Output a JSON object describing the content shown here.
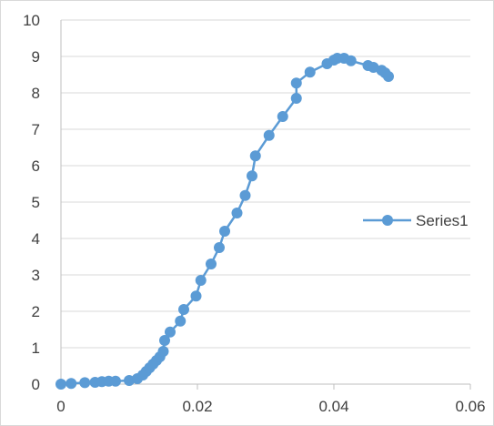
{
  "chart_data": {
    "type": "scatter",
    "title": "",
    "xlabel": "",
    "ylabel": "",
    "xlim": [
      0,
      0.06
    ],
    "ylim": [
      0,
      10
    ],
    "x_ticks": [
      "0",
      "0.02",
      "0.04",
      "0.06"
    ],
    "y_ticks": [
      "0",
      "1",
      "2",
      "3",
      "4",
      "5",
      "6",
      "7",
      "8",
      "9",
      "10"
    ],
    "grid": "horizontal",
    "legend_position": "right",
    "series": [
      {
        "name": "Series1",
        "color": "#5b9bd5",
        "points": [
          [
            0.0,
            0.0
          ],
          [
            0.0015,
            0.02
          ],
          [
            0.0035,
            0.04
          ],
          [
            0.005,
            0.05
          ],
          [
            0.006,
            0.07
          ],
          [
            0.007,
            0.08
          ],
          [
            0.008,
            0.08
          ],
          [
            0.01,
            0.1
          ],
          [
            0.0112,
            0.15
          ],
          [
            0.012,
            0.25
          ],
          [
            0.0125,
            0.35
          ],
          [
            0.013,
            0.45
          ],
          [
            0.0135,
            0.55
          ],
          [
            0.014,
            0.65
          ],
          [
            0.0145,
            0.75
          ],
          [
            0.015,
            0.9
          ],
          [
            0.0152,
            1.2
          ],
          [
            0.016,
            1.43
          ],
          [
            0.0175,
            1.73
          ],
          [
            0.018,
            2.05
          ],
          [
            0.0198,
            2.42
          ],
          [
            0.0205,
            2.85
          ],
          [
            0.022,
            3.3
          ],
          [
            0.0232,
            3.75
          ],
          [
            0.024,
            4.2
          ],
          [
            0.0258,
            4.7
          ],
          [
            0.027,
            5.18
          ],
          [
            0.028,
            5.72
          ],
          [
            0.0285,
            6.27
          ],
          [
            0.0305,
            6.83
          ],
          [
            0.0325,
            7.35
          ],
          [
            0.0345,
            7.85
          ],
          [
            0.0345,
            8.27
          ],
          [
            0.0365,
            8.57
          ],
          [
            0.039,
            8.8
          ],
          [
            0.04,
            8.9
          ],
          [
            0.0405,
            8.95
          ],
          [
            0.0415,
            8.95
          ],
          [
            0.0425,
            8.88
          ],
          [
            0.045,
            8.75
          ],
          [
            0.0458,
            8.7
          ],
          [
            0.047,
            8.62
          ],
          [
            0.0475,
            8.55
          ],
          [
            0.048,
            8.45
          ]
        ]
      }
    ]
  }
}
